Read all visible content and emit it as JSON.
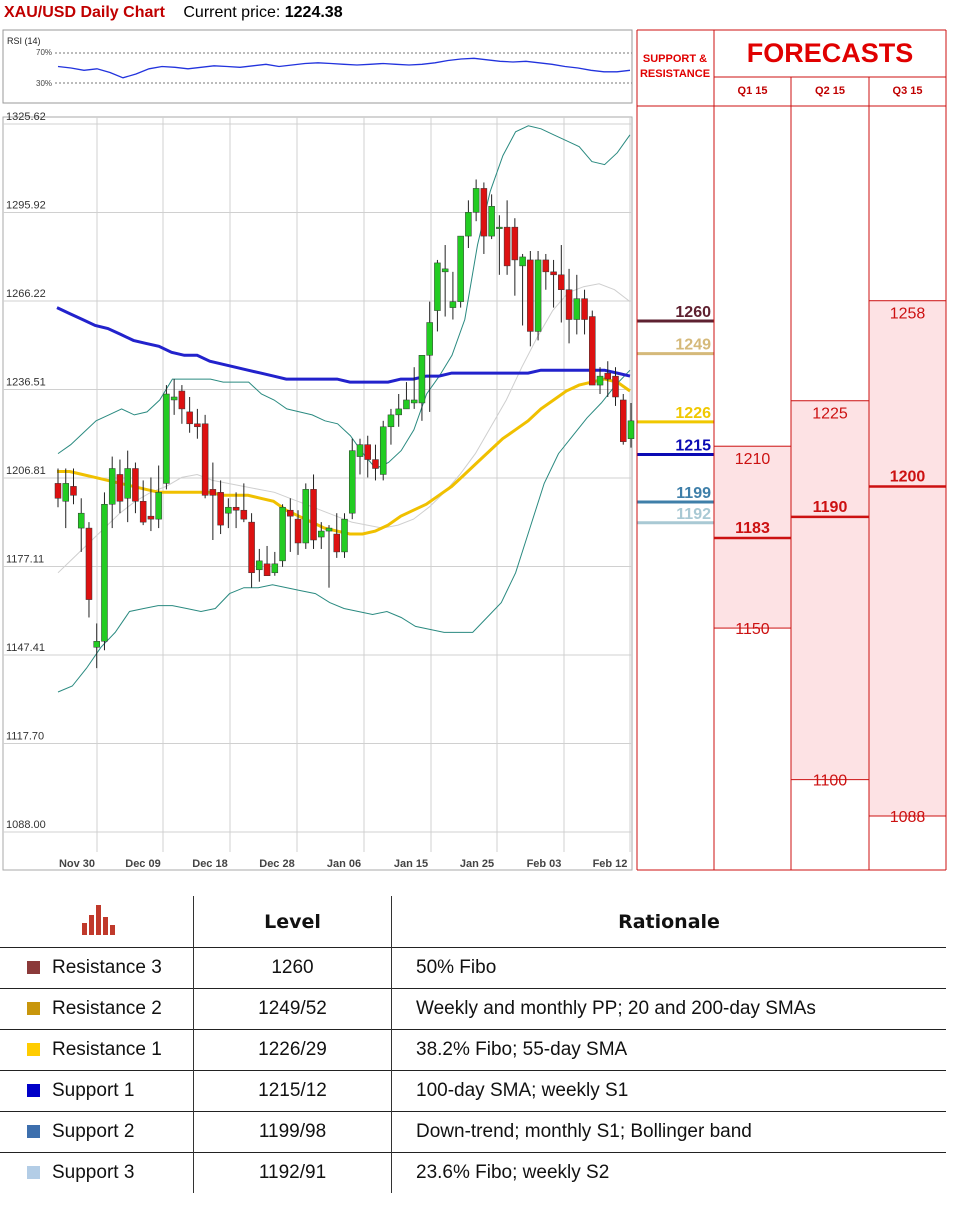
{
  "header": {
    "title": "XAU/USD Daily Chart",
    "price_label": "Current price:",
    "price_value": "1224.38"
  },
  "chart_data": {
    "type": "candlestick",
    "title": "XAU/USD Daily Chart",
    "y_ticks": [
      "1325.62",
      "1295.92",
      "1266.22",
      "1236.51",
      "1206.81",
      "1177.11",
      "1147.41",
      "1117.70",
      "1088.00"
    ],
    "ylim": [
      1088.0,
      1325.62
    ],
    "x_ticks": [
      "Nov 30",
      "Dec 09",
      "Dec 18",
      "Dec 28",
      "Jan 06",
      "Jan 15",
      "Jan 25",
      "Feb 03",
      "Feb 12"
    ],
    "grid": true,
    "rsi": {
      "label": "RSI (14)",
      "levels": [
        "70%",
        "30%"
      ],
      "values": [
        52,
        50,
        47,
        49,
        44,
        37,
        42,
        49,
        52,
        51,
        49,
        51,
        53,
        52,
        51,
        53,
        55,
        52,
        54,
        56,
        57,
        56,
        55,
        54,
        55,
        56,
        55,
        54,
        55,
        57,
        60,
        62,
        63,
        61,
        59,
        58,
        59,
        57,
        55,
        52,
        50,
        47,
        45,
        45,
        47
      ]
    },
    "candles": [
      [
        1205,
        1210,
        1197,
        1200
      ],
      [
        1199,
        1210,
        1190,
        1205
      ],
      [
        1204,
        1210,
        1198,
        1201
      ],
      [
        1190,
        1200,
        1182,
        1195
      ],
      [
        1190,
        1192,
        1160,
        1166
      ],
      [
        1150,
        1158,
        1143,
        1152
      ],
      [
        1152,
        1202,
        1149,
        1198
      ],
      [
        1198,
        1214,
        1190,
        1210
      ],
      [
        1208,
        1213,
        1195,
        1199
      ],
      [
        1200,
        1216,
        1192,
        1210
      ],
      [
        1210,
        1212,
        1195,
        1199
      ],
      [
        1199,
        1206,
        1191,
        1192
      ],
      [
        1194,
        1207,
        1189,
        1193
      ],
      [
        1193,
        1211,
        1190,
        1202
      ],
      [
        1205,
        1238,
        1203,
        1235
      ],
      [
        1233,
        1240,
        1228,
        1234
      ],
      [
        1236,
        1238,
        1225,
        1230
      ],
      [
        1229,
        1234,
        1222,
        1225
      ],
      [
        1225,
        1230,
        1220,
        1224
      ],
      [
        1225,
        1228,
        1200,
        1201
      ],
      [
        1203,
        1212,
        1186,
        1201
      ],
      [
        1202,
        1206,
        1188,
        1191
      ],
      [
        1195,
        1200,
        1190,
        1197
      ],
      [
        1197,
        1202,
        1190,
        1196
      ],
      [
        1196,
        1205,
        1192,
        1193
      ],
      [
        1192,
        1195,
        1170,
        1175
      ],
      [
        1176,
        1183,
        1172,
        1179
      ],
      [
        1178,
        1184,
        1174,
        1174
      ],
      [
        1175,
        1182,
        1174,
        1178
      ],
      [
        1179,
        1198,
        1177,
        1197
      ],
      [
        1196,
        1200,
        1182,
        1194
      ],
      [
        1193,
        1196,
        1181,
        1185
      ],
      [
        1185,
        1205,
        1183,
        1203
      ],
      [
        1203,
        1208,
        1183,
        1186
      ],
      [
        1187,
        1192,
        1183,
        1189
      ],
      [
        1189,
        1191,
        1170,
        1190
      ],
      [
        1188,
        1195,
        1180,
        1182
      ],
      [
        1182,
        1195,
        1180,
        1193
      ],
      [
        1195,
        1220,
        1193,
        1216
      ],
      [
        1214,
        1220,
        1208,
        1218
      ],
      [
        1218,
        1221,
        1207,
        1213
      ],
      [
        1213,
        1218,
        1206,
        1210
      ],
      [
        1208,
        1226,
        1206,
        1224
      ],
      [
        1224,
        1230,
        1218,
        1228
      ],
      [
        1228,
        1235,
        1224,
        1230
      ],
      [
        1230,
        1239,
        1230,
        1233
      ],
      [
        1232,
        1244,
        1230,
        1233
      ],
      [
        1232,
        1248,
        1226,
        1248
      ],
      [
        1248,
        1266,
        1229,
        1259
      ],
      [
        1263,
        1280,
        1256,
        1279
      ],
      [
        1276,
        1285,
        1261,
        1277
      ],
      [
        1264,
        1276,
        1260,
        1266
      ],
      [
        1266,
        1288,
        1264,
        1288
      ],
      [
        1288,
        1300,
        1284,
        1296
      ],
      [
        1296,
        1307,
        1293,
        1304
      ],
      [
        1304,
        1306,
        1282,
        1288
      ],
      [
        1288,
        1302,
        1287,
        1298
      ],
      [
        1291,
        1295,
        1275,
        1291
      ],
      [
        1291,
        1300,
        1275,
        1278
      ],
      [
        1291,
        1294,
        1268,
        1280
      ],
      [
        1278,
        1282,
        1258,
        1281
      ],
      [
        1280,
        1283,
        1251,
        1256
      ],
      [
        1256,
        1283,
        1253,
        1280
      ],
      [
        1280,
        1282,
        1270,
        1276
      ],
      [
        1276,
        1280,
        1264,
        1275
      ],
      [
        1275,
        1285,
        1259,
        1270
      ],
      [
        1270,
        1277,
        1252,
        1260
      ],
      [
        1260,
        1275,
        1255,
        1267
      ],
      [
        1267,
        1270,
        1255,
        1260
      ],
      [
        1261,
        1263,
        1238,
        1238
      ],
      [
        1238,
        1244,
        1235,
        1241
      ],
      [
        1242,
        1246,
        1234,
        1240
      ],
      [
        1241,
        1244,
        1231,
        1234
      ],
      [
        1233,
        1235,
        1218,
        1219
      ],
      [
        1220,
        1232,
        1217,
        1226
      ]
    ],
    "sma_200": [
      1264,
      1262,
      1260,
      1258,
      1257,
      1255,
      1253,
      1252,
      1251,
      1249,
      1248,
      1248,
      1246,
      1245,
      1244,
      1243,
      1242,
      1241,
      1240,
      1240,
      1240,
      1240,
      1240,
      1239,
      1239,
      1239,
      1239,
      1240,
      1240,
      1241,
      1241,
      1242,
      1242,
      1242,
      1242,
      1242,
      1242,
      1242,
      1243,
      1243,
      1243,
      1243,
      1243,
      1243,
      1242,
      1241
    ],
    "sma_55": [
      1209,
      1209,
      1208,
      1207,
      1206,
      1205,
      1204,
      1203,
      1202,
      1202,
      1202,
      1202,
      1202,
      1201,
      1201,
      1201,
      1200,
      1199,
      1196,
      1194,
      1192,
      1190,
      1189,
      1188,
      1188,
      1189,
      1191,
      1194,
      1196,
      1198,
      1201,
      1204,
      1208,
      1212,
      1216,
      1220,
      1223,
      1226,
      1230,
      1233,
      1236,
      1238,
      1239,
      1240,
      1239,
      1236
    ],
    "bollinger_upper": [
      1215,
      1218,
      1222,
      1226,
      1228,
      1230,
      1228,
      1229,
      1233,
      1240,
      1240,
      1240,
      1240,
      1239,
      1239,
      1239,
      1235,
      1233,
      1230,
      1229,
      1228,
      1226,
      1225,
      1221,
      1215,
      1210,
      1212,
      1216,
      1223,
      1235,
      1241,
      1248,
      1260,
      1285,
      1303,
      1315,
      1323,
      1325,
      1324,
      1322,
      1320,
      1318,
      1313,
      1312,
      1316,
      1322
    ],
    "bollinger_lower": [
      1135,
      1137,
      1143,
      1150,
      1155,
      1162,
      1163,
      1164,
      1164,
      1163,
      1162,
      1163,
      1168,
      1170,
      1170,
      1171,
      1170,
      1169,
      1168,
      1165,
      1163,
      1162,
      1161,
      1162,
      1160,
      1157,
      1156,
      1155,
      1155,
      1155,
      1160,
      1165,
      1175,
      1190,
      1205,
      1215,
      1221,
      1227,
      1232,
      1238,
      1243
    ],
    "bollinger_mid": [
      1175,
      1180,
      1185,
      1190,
      1195,
      1199,
      1202,
      1204,
      1207,
      1208,
      1206,
      1205,
      1204,
      1203,
      1202,
      1200,
      1198,
      1196,
      1194,
      1192,
      1191,
      1190,
      1191,
      1193,
      1197,
      1202,
      1208,
      1215,
      1224,
      1233,
      1244,
      1254,
      1263,
      1269,
      1271,
      1272,
      1270,
      1266
    ],
    "support_resistance": [
      {
        "value": "1260",
        "color": "#5e2130"
      },
      {
        "value": "1249",
        "color": "#d5b97a"
      },
      {
        "value": "1226",
        "color": "#f0c800"
      },
      {
        "value": "1215",
        "color": "#0a0ab4"
      },
      {
        "value": "1199",
        "color": "#3f7fa9"
      },
      {
        "value": "1192",
        "color": "#a9c9d4"
      }
    ]
  },
  "forecasts": {
    "title": "FORECASTS",
    "sr_title_1": "SUPPORT &",
    "sr_title_2": "RESISTANCE",
    "columns": [
      {
        "label": "Q1 15",
        "high": "1210",
        "mid": "1183",
        "low": "1150"
      },
      {
        "label": "Q2 15",
        "high": "1225",
        "mid": "1190",
        "low": "1100"
      },
      {
        "label": "Q3 15",
        "high": "1258",
        "mid": "1200",
        "low": "1088"
      }
    ]
  },
  "table": {
    "col_level": "Level",
    "col_rationale": "Rationale",
    "rows": [
      {
        "name": "Resistance 3",
        "level": "1260",
        "rationale": "50% Fibo",
        "color": "#8b3a3a"
      },
      {
        "name": "Resistance 2",
        "level": "1249/52",
        "rationale": "Weekly and monthly PP; 20 and 200-day SMAs",
        "color": "#c8960c"
      },
      {
        "name": "Resistance 1",
        "level": "1226/29",
        "rationale": "38.2% Fibo; 55-day SMA",
        "color": "#ffcc00"
      },
      {
        "name": "Support 1",
        "level": "1215/12",
        "rationale": "100-day SMA; weekly S1",
        "color": "#0000c8"
      },
      {
        "name": "Support 2",
        "level": "1199/98",
        "rationale": "Down-trend; monthly S1; Bollinger band",
        "color": "#3d6fad"
      },
      {
        "name": "Support 3",
        "level": "1192/91",
        "rationale": "23.6% Fibo; weekly S2",
        "color": "#b3cde6"
      }
    ]
  }
}
